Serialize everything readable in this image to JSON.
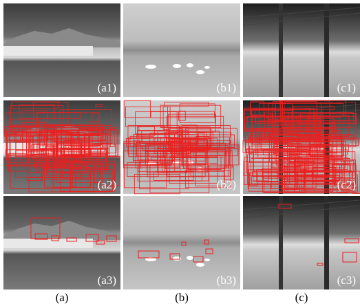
{
  "grid": [
    [
      "(a1)",
      "(b1)",
      "(c1)"
    ],
    [
      "(a2)",
      "(b2)",
      "(c2)"
    ],
    [
      "(a3)",
      "(b3)",
      "(c3)"
    ]
  ],
  "columns": [
    "(a)",
    "(b)",
    "(c)"
  ]
}
